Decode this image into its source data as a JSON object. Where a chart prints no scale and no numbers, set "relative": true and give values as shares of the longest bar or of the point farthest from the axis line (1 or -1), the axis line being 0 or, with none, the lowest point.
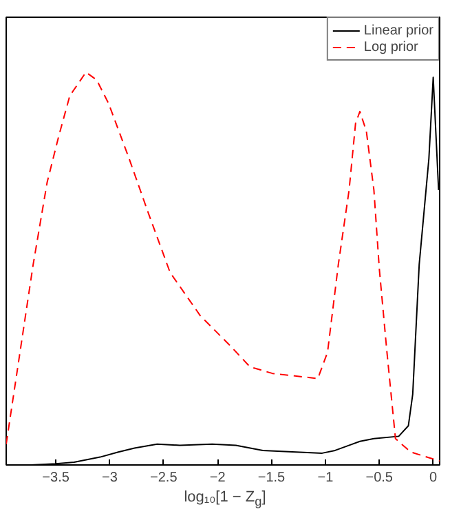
{
  "chart_data": {
    "type": "line",
    "relative": true,
    "xlabel": "log₁₀[1 − Z$_{g}$]",
    "xlim": [
      -3.96,
      0.06
    ],
    "xticks": [
      {
        "value": -3.5,
        "label": "−3.5"
      },
      {
        "value": -3,
        "label": "−3"
      },
      {
        "value": -2.5,
        "label": "−2.5"
      },
      {
        "value": -2,
        "label": "−2"
      },
      {
        "value": -1.5,
        "label": "−1.5"
      },
      {
        "value": -1,
        "label": "−1"
      },
      {
        "value": -0.5,
        "label": "−0.5"
      },
      0
    ],
    "tick_labels": "x",
    "grid": false,
    "legend": "top right",
    "marker": "none",
    "series": [
      {
        "name": "Linear prior",
        "color": "#000000",
        "line_style": "solid",
        "x": [
          -3.73,
          -3.5,
          -3.33,
          -3.09,
          -2.92,
          -2.77,
          -2.56,
          -2.35,
          -2.05,
          -1.83,
          -1.58,
          -1.03,
          -0.91,
          -0.68,
          -0.55,
          -0.32,
          -0.23,
          -0.19,
          -0.13,
          -0.04,
          0.0,
          0.05
        ],
        "values": [
          0,
          0.003,
          0.007,
          0.02,
          0.033,
          0.043,
          0.053,
          0.05,
          0.053,
          0.05,
          0.037,
          0.03,
          0.037,
          0.06,
          0.067,
          0.073,
          0.1,
          0.18,
          0.51,
          0.78,
          0.987,
          0.7
        ]
      },
      {
        "name": "Log prior",
        "color": "#ff0000",
        "line_style": "dashed",
        "x": [
          -3.96,
          -3.71,
          -3.58,
          -3.47,
          -3.37,
          -3.22,
          -3.12,
          -3.01,
          -2.82,
          -2.64,
          -2.44,
          -2.16,
          -1.87,
          -1.7,
          -1.49,
          -1.07,
          -0.98,
          -0.88,
          -0.78,
          -0.72,
          -0.68,
          -0.62,
          -0.55,
          -0.5,
          -0.43,
          -0.35,
          -0.21,
          0.06
        ],
        "values": [
          0.053,
          0.51,
          0.72,
          0.84,
          0.94,
          1.0,
          0.98,
          0.92,
          0.78,
          0.64,
          0.49,
          0.38,
          0.3,
          0.25,
          0.233,
          0.22,
          0.287,
          0.51,
          0.7,
          0.87,
          0.9,
          0.85,
          0.7,
          0.5,
          0.29,
          0.067,
          0.033,
          0.01
        ]
      }
    ]
  }
}
